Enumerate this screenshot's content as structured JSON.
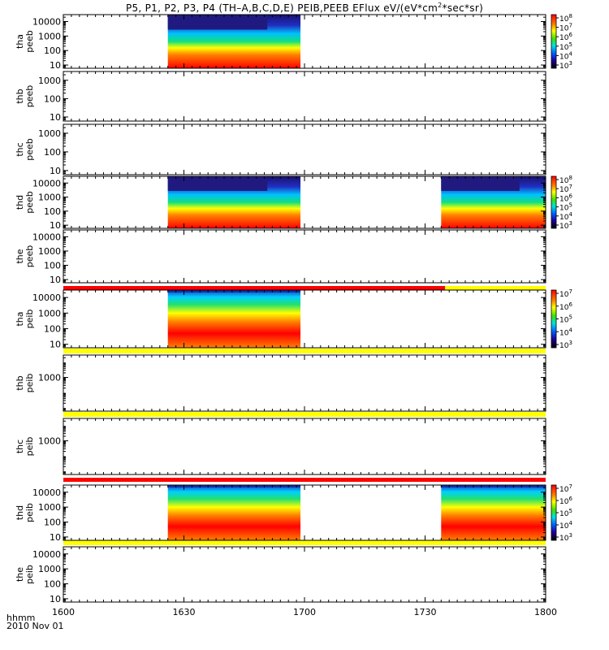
{
  "title": {
    "prefix": "P5, P1, P2, P3, P4 (TH–A,B,C,D,E) PEIB,PEEB EFlux eV/(eV*cm",
    "sup": "2",
    "suffix": "*sec*sr)"
  },
  "time_axis": {
    "label": "hhmm",
    "date": "2010 Nov 01",
    "ticks": [
      "1600",
      "1630",
      "1700",
      "1730",
      "1800"
    ]
  },
  "colors": {
    "bar_red": "#ff0000",
    "bar_yellow": "#ffff00",
    "spectro_low": "#00008b",
    "spectro_high": "#ff0000"
  },
  "chart_data": {
    "type": "heatmap",
    "time_range": [
      "1600",
      "1800"
    ],
    "y_scale": "log",
    "panels": [
      {
        "probe": "tha",
        "product": "peeb",
        "yticks": [
          "10000",
          "1000",
          "100",
          "10"
        ],
        "ylim": [
          6,
          30000
        ],
        "colorbar": {
          "ticks": [
            "10^8",
            "10^7",
            "10^6",
            "10^5",
            "10^4",
            "10^3"
          ]
        },
        "data_intervals": [
          [
            "1626",
            "1659"
          ]
        ]
      },
      {
        "probe": "thb",
        "product": "peeb",
        "yticks": [
          "1000",
          "100",
          "10"
        ],
        "ylim": [
          6,
          3000
        ],
        "data_intervals": []
      },
      {
        "probe": "thc",
        "product": "peeb",
        "yticks": [
          "1000",
          "100",
          "10"
        ],
        "ylim": [
          6,
          3000
        ],
        "data_intervals": []
      },
      {
        "probe": "thd",
        "product": "peeb",
        "yticks": [
          "10000",
          "1000",
          "100",
          "10"
        ],
        "ylim": [
          6,
          30000
        ],
        "colorbar": {
          "ticks": [
            "10^8",
            "10^7",
            "10^6",
            "10^5",
            "10^4",
            "10^3"
          ]
        },
        "data_intervals": [
          [
            "1626",
            "1659"
          ],
          [
            "1734",
            "1800"
          ]
        ]
      },
      {
        "probe": "the",
        "product": "peeb",
        "yticks": [
          "10000",
          "1000",
          "100",
          "10"
        ],
        "ylim": [
          6,
          30000
        ],
        "data_intervals": []
      },
      {
        "probe": "tha",
        "product": "peib",
        "yticks": [
          "10000",
          "1000",
          "100",
          "10"
        ],
        "ylim": [
          6,
          30000
        ],
        "colorbar": {
          "ticks": [
            "10^7",
            "10^6",
            "10^5",
            "10^4",
            "10^3"
          ]
        },
        "data_intervals": [
          [
            "1626",
            "1659"
          ]
        ]
      },
      {
        "probe": "thb",
        "product": "peib",
        "yticks": [
          "1000"
        ],
        "ylim": [
          6,
          30000
        ],
        "data_intervals": []
      },
      {
        "probe": "thc",
        "product": "peib",
        "yticks": [
          "1000"
        ],
        "ylim": [
          6,
          30000
        ],
        "data_intervals": []
      },
      {
        "probe": "thd",
        "product": "peib",
        "yticks": [
          "10000",
          "1000",
          "100",
          "10"
        ],
        "ylim": [
          6,
          30000
        ],
        "colorbar": {
          "ticks": [
            "10^7",
            "10^6",
            "10^5",
            "10^4",
            "10^3"
          ]
        },
        "data_intervals": [
          [
            "1626",
            "1659"
          ],
          [
            "1734",
            "1800"
          ]
        ]
      },
      {
        "probe": "the",
        "product": "peib",
        "yticks": [
          "10000",
          "1000",
          "100",
          "10"
        ],
        "ylim": [
          6,
          30000
        ],
        "data_intervals": []
      }
    ],
    "status_bars": [
      {
        "segments": [
          {
            "from": "1600",
            "to": "1735",
            "color": "red"
          },
          {
            "from": "1735",
            "to": "1800",
            "color": "yellow"
          }
        ]
      },
      {
        "segments": [
          {
            "from": "1600",
            "to": "1800",
            "color": "yellow"
          }
        ]
      },
      {
        "segments": [
          {
            "from": "1600",
            "to": "1800",
            "color": "yellow"
          }
        ]
      },
      {
        "segments": [
          {
            "from": "1600",
            "to": "1800",
            "color": "red"
          }
        ]
      },
      {
        "segments": [
          {
            "from": "1600",
            "to": "1800",
            "color": "yellow"
          }
        ]
      }
    ]
  }
}
